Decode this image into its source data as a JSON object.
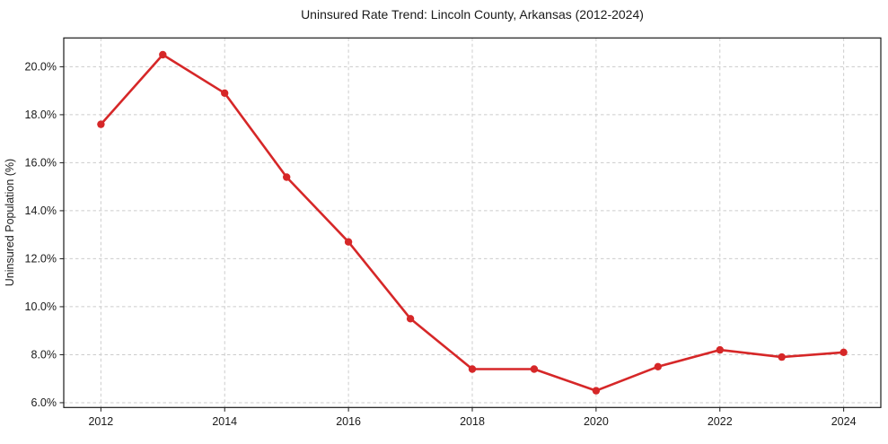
{
  "figure": {
    "background": "#ffffff"
  },
  "chart_data": {
    "type": "line",
    "title": "Uninsured Rate Trend: Lincoln County, Arkansas (2012-2024)",
    "xlabel": "",
    "ylabel": "Uninsured Population (%)",
    "x": [
      2012,
      2013,
      2014,
      2015,
      2016,
      2017,
      2018,
      2019,
      2020,
      2021,
      2022,
      2023,
      2024
    ],
    "values": [
      17.6,
      20.5,
      18.9,
      15.4,
      12.7,
      9.5,
      7.4,
      7.4,
      6.5,
      7.5,
      8.2,
      7.9,
      8.1
    ],
    "xticks": [
      2012,
      2014,
      2016,
      2018,
      2020,
      2022,
      2024
    ],
    "yticks": [
      6,
      8,
      10,
      12,
      14,
      16,
      18,
      20
    ],
    "ytick_decimals": 1,
    "ytick_suffix": "%",
    "xlim": [
      2011.4,
      2024.6
    ],
    "ylim": [
      5.8,
      21.2
    ],
    "line_color": "#d62728",
    "marker": "circle",
    "grid": true,
    "grid_style": "dashed",
    "grid_color": "#cccccc",
    "axis_color": "#1a1a1a",
    "text_color": "#1a1a1a",
    "legend": "none"
  }
}
